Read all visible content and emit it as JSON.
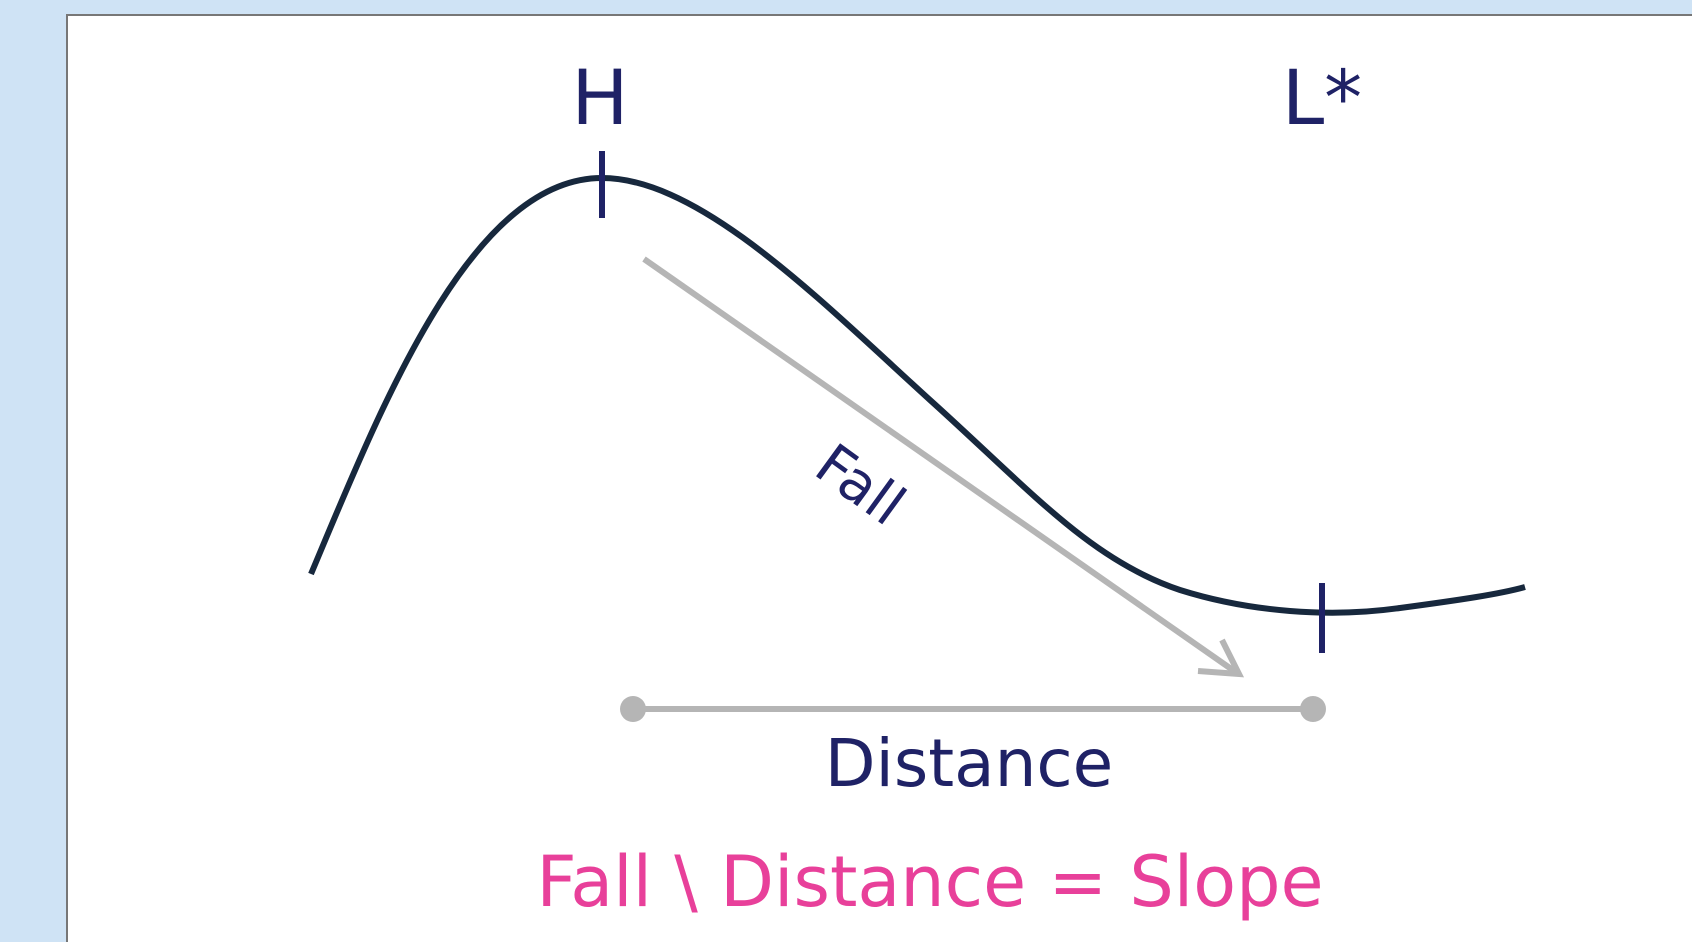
{
  "labels": {
    "peak": "H",
    "low": "L*",
    "fall": "Fall",
    "distance": "Distance"
  },
  "formula": "Fall \\ Distance = Slope"
}
